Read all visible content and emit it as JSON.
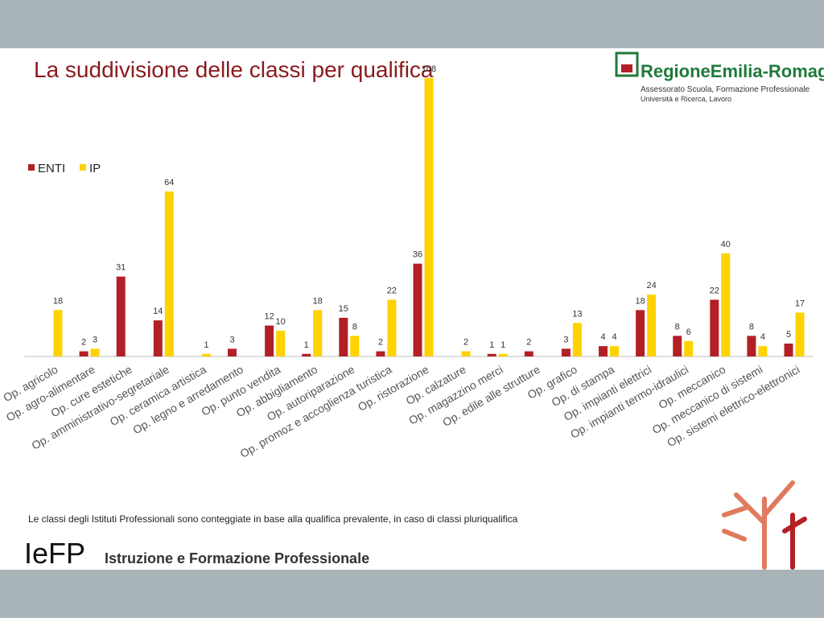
{
  "title": "La suddivisione delle classi per qualifica",
  "logo": {
    "name": "RegioneEmilia-Romagna",
    "line1": "Assessorato Scuola, Formazione Professionale",
    "line2": "Università e Ricerca, Lavoro"
  },
  "chart_data": {
    "type": "bar",
    "categories": [
      "Op. agricolo",
      "Op. agro-alimentare",
      "Op. cure estetiche",
      "Op. amministrativo-segretariale",
      "Op. ceramica artistica",
      "Op. legno e arredamento",
      "Op. punto vendita",
      "Op. abbigliamento",
      "Op. autoriparazione",
      "Op. promoz e accoglienza turistica",
      "Op. ristorazione",
      "Op. calzature",
      "Op. magazzino merci",
      "Op. edile alle strutture",
      "Op. grafico",
      "Op. di stampa",
      "Op. impianti elettrici",
      "Op. impianti termo-idraulici",
      "Op. meccanico",
      "Op. meccanico di sistemi",
      "Op. sistemi elettrico-elettronici"
    ],
    "series": [
      {
        "name": "ENTI",
        "color": "#b22026",
        "values": [
          null,
          2,
          31,
          14,
          null,
          3,
          12,
          1,
          15,
          2,
          36,
          null,
          1,
          2,
          3,
          4,
          18,
          8,
          22,
          8,
          5
        ]
      },
      {
        "name": "IP",
        "color": "#ffd200",
        "values": [
          18,
          3,
          null,
          64,
          1,
          null,
          10,
          18,
          8,
          22,
          108,
          2,
          1,
          null,
          13,
          4,
          24,
          6,
          40,
          4,
          17
        ]
      }
    ],
    "legend": "top-left"
  },
  "footnote": "Le classi degli Istituti Professionali sono conteggiate in base alla qualifica prevalente, in caso di classi pluriqualifica",
  "footer": {
    "brand": "IeFP",
    "subtitle": "Istruzione e Formazione Professionale"
  }
}
